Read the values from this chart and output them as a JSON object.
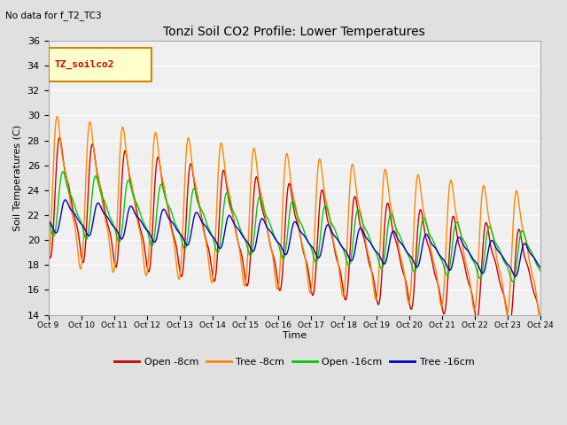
{
  "title": "Tonzi Soil CO2 Profile: Lower Temperatures",
  "subtitle": "No data for f_T2_TC3",
  "ylabel": "Soil Temperatures (C)",
  "xlabel": "Time",
  "legend_label": "TZ_soilco2",
  "ylim": [
    14,
    36
  ],
  "xlim": [
    0,
    15
  ],
  "bg_color": "#e0e0e0",
  "plot_bg": "#f0f0f0",
  "lines": {
    "open_8cm": {
      "color": "#cc0000",
      "label": "Open -8cm"
    },
    "tree_8cm": {
      "color": "#ff8800",
      "label": "Tree -8cm"
    },
    "open_16cm": {
      "color": "#00cc00",
      "label": "Open -16cm"
    },
    "tree_16cm": {
      "color": "#0000cc",
      "label": "Tree -16cm"
    }
  },
  "xtick_labels": [
    "Oct 9",
    "Oct 10",
    "Oct 11",
    "Oct 12",
    "Oct 13",
    "Oct 14",
    "Oct 15",
    "Oct 16",
    "Oct 17",
    "Oct 18",
    "Oct 19",
    "Oct 20",
    "Oct 21",
    "Oct 22",
    "Oct 23",
    "Oct 24"
  ],
  "ytick_vals": [
    14,
    16,
    18,
    20,
    22,
    24,
    26,
    28,
    30,
    32,
    34,
    36
  ]
}
